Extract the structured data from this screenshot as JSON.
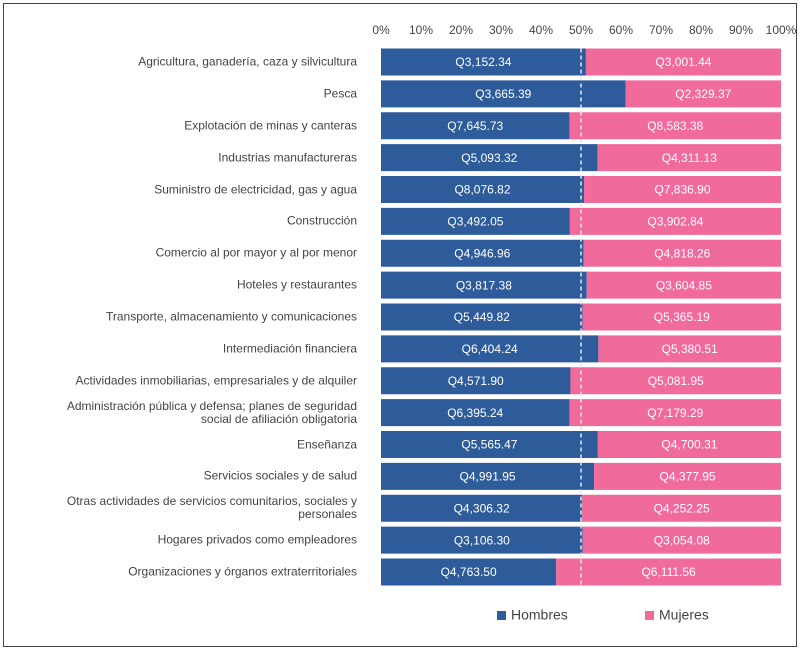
{
  "chart_data": {
    "type": "bar",
    "orientation": "horizontal",
    "stacked": "percent",
    "categories": [
      "Agricultura, ganadería, caza y silvicultura",
      "Pesca",
      "Explotación de minas y canteras",
      "Industrias manufactureras",
      "Suministro de electricidad, gas y agua",
      "Construcción",
      "Comercio al por mayor y al por menor",
      "Hoteles y restaurantes",
      "Transporte, almacenamiento y comunicaciones",
      "Intermediación financiera",
      "Actividades inmobiliarias, empresariales y de alquiler",
      "Administración pública y defensa; planes de seguridad\nsocial de afiliación obligatoria",
      "Enseñanza",
      "Servicios sociales y de salud",
      "Otras actividades de servicios comunitarios, sociales y\npersonales",
      "Hogares privados como empleadores",
      "Organizaciones y órganos extraterritoriales"
    ],
    "series": [
      {
        "name": "Hombres",
        "color": "#2e5b9a",
        "values": [
          3152.34,
          3665.39,
          7645.73,
          5093.32,
          8076.82,
          3492.05,
          4946.96,
          3817.38,
          5449.82,
          6404.24,
          4571.9,
          6395.24,
          5565.47,
          4991.95,
          4306.32,
          3106.3,
          4763.5
        ],
        "value_labels": [
          "Q3,152.34",
          "Q3,665.39",
          "Q7,645.73",
          "Q5,093.32",
          "Q8,076.82",
          "Q3,492.05",
          "Q4,946.96",
          "Q3,817.38",
          "Q5,449.82",
          "Q6,404.24",
          "Q4,571.90",
          "Q6,395.24",
          "Q5,565.47",
          "Q4,991.95",
          "Q4,306.32",
          "Q3,106.30",
          "Q4,763.50"
        ]
      },
      {
        "name": "Mujeres",
        "color": "#f06b9b",
        "values": [
          3001.44,
          2329.37,
          8583.38,
          4311.13,
          7836.9,
          3902.84,
          4818.26,
          3604.85,
          5365.19,
          5380.51,
          5081.95,
          7179.29,
          4700.31,
          4377.95,
          4252.25,
          3054.08,
          6111.56
        ],
        "value_labels": [
          "Q3,001.44",
          "Q2,329.37",
          "Q8,583.38",
          "Q4,311.13",
          "Q7,836.90",
          "Q3,902.84",
          "Q4,818.26",
          "Q3,604.85",
          "Q5,365.19",
          "Q5,380.51",
          "Q5,081.95",
          "Q7,179.29",
          "Q4,700.31",
          "Q4,377.95",
          "Q4,252.25",
          "Q3,054.08",
          "Q6,111.56"
        ]
      }
    ],
    "xlim": [
      0,
      100
    ],
    "xticks": [
      {
        "value": 0,
        "label": "0%"
      },
      {
        "value": 10,
        "label": "10%"
      },
      {
        "value": 20,
        "label": "20%"
      },
      {
        "value": 30,
        "label": "30%"
      },
      {
        "value": 40,
        "label": "40%"
      },
      {
        "value": 50,
        "label": "50%"
      },
      {
        "value": 60,
        "label": "60%"
      },
      {
        "value": 70,
        "label": "70%"
      },
      {
        "value": 80,
        "label": "80%"
      },
      {
        "value": 90,
        "label": "90%"
      },
      {
        "value": 100,
        "label": "100%"
      }
    ],
    "reference_line": 50,
    "legend": "bottom"
  }
}
